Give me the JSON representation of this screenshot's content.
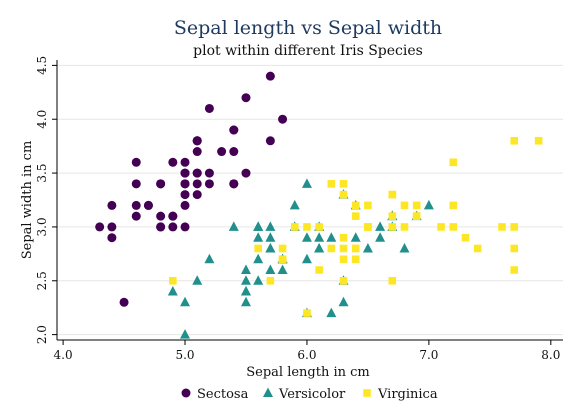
{
  "chart_data": {
    "type": "scatter",
    "title": "Sepal length vs Sepal width",
    "subtitle": "plot within different Iris Species",
    "xlabel": "Sepal length in cm",
    "ylabel": "Sepal width in cm",
    "xlim": [
      3.95,
      8.1
    ],
    "ylim": [
      1.95,
      4.55
    ],
    "xticks": [
      4.0,
      5.0,
      6.0,
      7.0,
      8.0
    ],
    "xtick_labels": [
      "4.0",
      "5.0",
      "6.0",
      "7.0",
      "8.0"
    ],
    "yticks": [
      2.0,
      2.5,
      3.0,
      3.5,
      4.0,
      4.5
    ],
    "ytick_labels": [
      "2.0",
      "2.5",
      "3.0",
      "3.5",
      "4.0",
      "4.5"
    ],
    "grid": "horizontal",
    "legend_position": "bottom",
    "series": [
      {
        "name": "Sectosa",
        "marker": "circle",
        "color": "#440154",
        "points": [
          [
            5.1,
            3.5
          ],
          [
            4.9,
            3.0
          ],
          [
            4.7,
            3.2
          ],
          [
            4.6,
            3.1
          ],
          [
            5.0,
            3.6
          ],
          [
            5.4,
            3.9
          ],
          [
            4.6,
            3.4
          ],
          [
            5.0,
            3.4
          ],
          [
            4.4,
            2.9
          ],
          [
            4.9,
            3.1
          ],
          [
            5.4,
            3.7
          ],
          [
            4.8,
            3.4
          ],
          [
            4.8,
            3.0
          ],
          [
            4.3,
            3.0
          ],
          [
            5.8,
            4.0
          ],
          [
            5.7,
            4.4
          ],
          [
            5.4,
            3.9
          ],
          [
            5.1,
            3.5
          ],
          [
            5.7,
            3.8
          ],
          [
            5.1,
            3.8
          ],
          [
            5.4,
            3.4
          ],
          [
            5.1,
            3.7
          ],
          [
            4.6,
            3.6
          ],
          [
            5.1,
            3.3
          ],
          [
            4.8,
            3.4
          ],
          [
            5.0,
            3.0
          ],
          [
            5.0,
            3.4
          ],
          [
            5.2,
            3.5
          ],
          [
            5.2,
            3.4
          ],
          [
            4.7,
            3.2
          ],
          [
            4.8,
            3.1
          ],
          [
            5.4,
            3.4
          ],
          [
            5.2,
            4.1
          ],
          [
            5.5,
            4.2
          ],
          [
            4.9,
            3.1
          ],
          [
            5.0,
            3.2
          ],
          [
            5.5,
            3.5
          ],
          [
            4.9,
            3.6
          ],
          [
            4.4,
            3.0
          ],
          [
            5.1,
            3.4
          ],
          [
            5.0,
            3.5
          ],
          [
            4.5,
            2.3
          ],
          [
            4.4,
            3.2
          ],
          [
            5.0,
            3.5
          ],
          [
            5.1,
            3.8
          ],
          [
            4.8,
            3.0
          ],
          [
            5.1,
            3.8
          ],
          [
            4.6,
            3.2
          ],
          [
            5.3,
            3.7
          ],
          [
            5.0,
            3.3
          ]
        ]
      },
      {
        "name": "Versicolor",
        "marker": "triangle",
        "color": "#21908d",
        "points": [
          [
            7.0,
            3.2
          ],
          [
            6.4,
            3.2
          ],
          [
            6.9,
            3.1
          ],
          [
            5.5,
            2.3
          ],
          [
            6.5,
            2.8
          ],
          [
            5.7,
            2.8
          ],
          [
            6.3,
            3.3
          ],
          [
            4.9,
            2.4
          ],
          [
            6.6,
            2.9
          ],
          [
            5.2,
            2.7
          ],
          [
            5.0,
            2.0
          ],
          [
            5.9,
            3.0
          ],
          [
            6.0,
            2.2
          ],
          [
            6.1,
            2.9
          ],
          [
            5.6,
            2.9
          ],
          [
            6.7,
            3.1
          ],
          [
            5.6,
            3.0
          ],
          [
            5.8,
            2.7
          ],
          [
            6.2,
            2.2
          ],
          [
            5.6,
            2.5
          ],
          [
            5.9,
            3.2
          ],
          [
            6.1,
            2.8
          ],
          [
            6.3,
            2.5
          ],
          [
            6.1,
            2.8
          ],
          [
            6.4,
            2.9
          ],
          [
            6.6,
            3.0
          ],
          [
            6.8,
            2.8
          ],
          [
            6.7,
            3.0
          ],
          [
            6.0,
            2.9
          ],
          [
            5.7,
            2.6
          ],
          [
            5.5,
            2.4
          ],
          [
            5.5,
            2.4
          ],
          [
            5.8,
            2.7
          ],
          [
            6.0,
            2.7
          ],
          [
            5.4,
            3.0
          ],
          [
            6.0,
            3.4
          ],
          [
            6.7,
            3.1
          ],
          [
            6.3,
            2.3
          ],
          [
            5.6,
            3.0
          ],
          [
            5.5,
            2.5
          ],
          [
            5.5,
            2.6
          ],
          [
            6.1,
            3.0
          ],
          [
            5.8,
            2.6
          ],
          [
            5.0,
            2.3
          ],
          [
            5.6,
            2.7
          ],
          [
            5.7,
            3.0
          ],
          [
            5.7,
            2.9
          ],
          [
            6.2,
            2.9
          ],
          [
            5.1,
            2.5
          ],
          [
            5.7,
            2.8
          ]
        ]
      },
      {
        "name": "Virginica",
        "marker": "square",
        "color": "#fde725",
        "points": [
          [
            6.3,
            3.3
          ],
          [
            5.8,
            2.7
          ],
          [
            7.1,
            3.0
          ],
          [
            6.3,
            2.9
          ],
          [
            6.5,
            3.0
          ],
          [
            7.6,
            3.0
          ],
          [
            4.9,
            2.5
          ],
          [
            7.3,
            2.9
          ],
          [
            6.7,
            2.5
          ],
          [
            7.2,
            3.6
          ],
          [
            6.5,
            3.2
          ],
          [
            6.4,
            2.7
          ],
          [
            6.8,
            3.0
          ],
          [
            5.7,
            2.5
          ],
          [
            5.8,
            2.8
          ],
          [
            6.4,
            3.2
          ],
          [
            6.5,
            3.0
          ],
          [
            7.7,
            3.8
          ],
          [
            7.7,
            2.6
          ],
          [
            6.0,
            2.2
          ],
          [
            6.9,
            3.2
          ],
          [
            5.6,
            2.8
          ],
          [
            7.7,
            2.8
          ],
          [
            6.3,
            2.7
          ],
          [
            6.7,
            3.3
          ],
          [
            7.2,
            3.2
          ],
          [
            6.2,
            2.8
          ],
          [
            6.1,
            3.0
          ],
          [
            6.4,
            2.8
          ],
          [
            7.2,
            3.0
          ],
          [
            7.4,
            2.8
          ],
          [
            7.9,
            3.8
          ],
          [
            6.4,
            2.8
          ],
          [
            6.3,
            2.8
          ],
          [
            6.1,
            2.6
          ],
          [
            7.7,
            3.0
          ],
          [
            6.3,
            3.4
          ],
          [
            6.4,
            3.1
          ],
          [
            6.0,
            3.0
          ],
          [
            6.9,
            3.1
          ],
          [
            6.7,
            3.1
          ],
          [
            6.9,
            3.1
          ],
          [
            5.8,
            2.7
          ],
          [
            6.8,
            3.2
          ],
          [
            6.7,
            3.3
          ],
          [
            6.7,
            3.0
          ],
          [
            6.3,
            2.5
          ],
          [
            6.5,
            3.0
          ],
          [
            6.2,
            3.4
          ],
          [
            5.9,
            3.0
          ]
        ]
      }
    ]
  }
}
